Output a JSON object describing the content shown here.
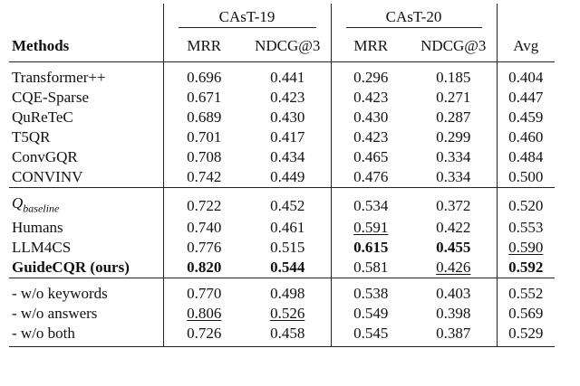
{
  "table": {
    "column_groups": [
      "CAsT-19",
      "CAsT-20"
    ],
    "header": [
      "Methods",
      "MRR",
      "NDCG@3",
      "MRR",
      "NDCG@3",
      "Avg"
    ],
    "groups": [
      {
        "rows": [
          [
            "Transformer++",
            "0.696",
            "0.441",
            "0.296",
            "0.185",
            "0.404"
          ],
          [
            "CQE-Sparse",
            "0.671",
            "0.423",
            "0.423",
            "0.271",
            "0.447"
          ],
          [
            "QuReTeC",
            "0.689",
            "0.430",
            "0.430",
            "0.287",
            "0.459"
          ],
          [
            "T5QR",
            "0.701",
            "0.417",
            "0.423",
            "0.299",
            "0.460"
          ],
          [
            "ConvGQR",
            "0.708",
            "0.434",
            "0.465",
            "0.334",
            "0.484"
          ],
          [
            "CONVINV",
            "0.742",
            "0.449",
            "0.476",
            "0.334",
            "0.500"
          ]
        ],
        "bold": [],
        "underline": []
      },
      {
        "rows": [
          [
            {
              "symbol": "Q",
              "subscript": "baseline"
            },
            "0.722",
            "0.452",
            "0.534",
            "0.372",
            "0.520"
          ],
          [
            "Humans",
            "0.740",
            "0.461",
            "0.591",
            "0.422",
            "0.553"
          ],
          [
            "LLM4CS",
            "0.776",
            "0.515",
            "0.615",
            "0.455",
            "0.590"
          ],
          [
            "GuideCQR (ours)",
            "0.820",
            "0.544",
            "0.581",
            "0.426",
            "0.592"
          ]
        ],
        "bold": [
          [
            2,
            3
          ],
          [
            2,
            4
          ],
          [
            3,
            0
          ],
          [
            3,
            1
          ],
          [
            3,
            2
          ],
          [
            3,
            5
          ]
        ],
        "underline": [
          [
            1,
            3
          ],
          [
            2,
            5
          ],
          [
            3,
            4
          ]
        ]
      },
      {
        "rows": [
          [
            "- w/o keywords",
            "0.770",
            "0.498",
            "0.538",
            "0.403",
            "0.552"
          ],
          [
            "- w/o answers",
            "0.806",
            "0.526",
            "0.549",
            "0.398",
            "0.569"
          ],
          [
            "- w/o both",
            "0.726",
            "0.458",
            "0.545",
            "0.387",
            "0.529"
          ]
        ],
        "bold": [],
        "underline": [
          [
            1,
            1
          ],
          [
            1,
            2
          ]
        ]
      }
    ]
  }
}
